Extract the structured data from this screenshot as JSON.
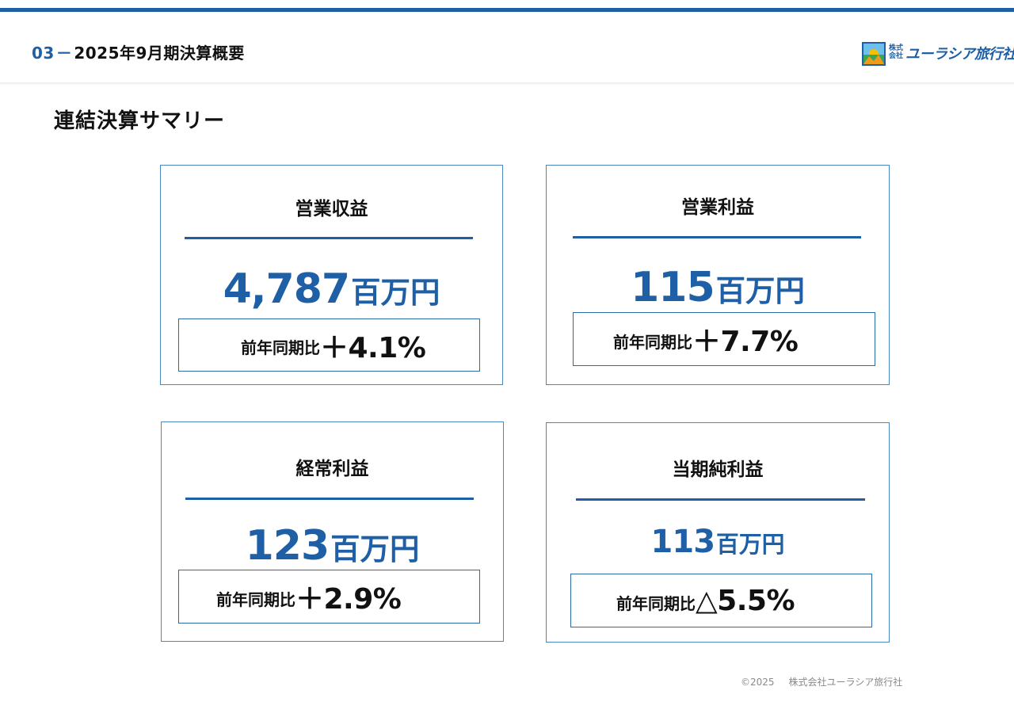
{
  "header": {
    "section_number": "03",
    "section_dash": "－",
    "section_title": "2025年9月期決算概要",
    "logo": {
      "small_text": "株式会社",
      "name": "ユーラシア旅行社",
      "colors": {
        "brand_blue": "#1f5fa6",
        "sun": "#f2c200",
        "green": "#3aa655"
      }
    }
  },
  "page_heading": "連結決算サマリー",
  "cards": [
    {
      "title": "営業収益",
      "amount": "4,787",
      "unit": "百万円",
      "yoy_label": "前年同期比",
      "yoy_rate": "＋4.1%"
    },
    {
      "title": "営業利益",
      "amount": "115",
      "unit": "百万円",
      "yoy_label": "前年同期比",
      "yoy_rate": "＋7.7%"
    },
    {
      "title": "経常利益",
      "amount": "123",
      "unit": "百万円",
      "yoy_label": "前年同期比",
      "yoy_rate": "＋2.9%"
    },
    {
      "title": "当期純利益",
      "amount": "113",
      "unit": "百万円",
      "yoy_label": "前年同期比",
      "yoy_rate": "△5.5%"
    }
  ],
  "footer": {
    "copyright": "©2025",
    "company": "株式会社ユーラシア旅行社"
  },
  "colors": {
    "accent": "#1f5fa6",
    "border": "#4a86c0"
  }
}
